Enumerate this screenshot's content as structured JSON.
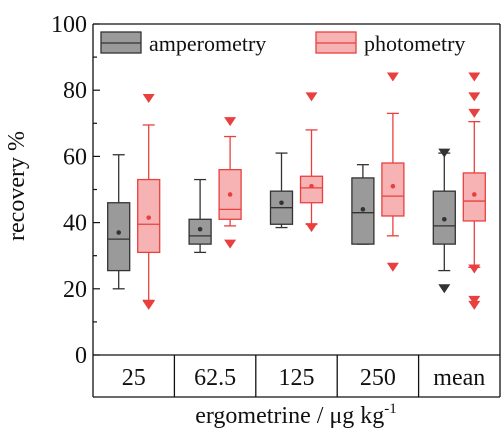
{
  "chart_data": {
    "type": "box",
    "xlabel": "ergometrine / μg kg",
    "xlabel_sup": "-1",
    "ylabel": "recovery %",
    "ylim": [
      0,
      100
    ],
    "yticks": [
      0,
      20,
      40,
      60,
      80,
      100
    ],
    "categories": [
      "25",
      "62.5",
      "125",
      "250",
      "mean"
    ],
    "legend_position": "top",
    "series": [
      {
        "name": "amperometry",
        "color": "#9a9a9a",
        "stroke": "#333333",
        "marker_color": "#333333",
        "boxes": [
          {
            "whisker_low": 20,
            "q1": 25.5,
            "median": 35,
            "q3": 46,
            "whisker_high": 60.5,
            "mean": 37,
            "outliers": []
          },
          {
            "whisker_low": 31,
            "q1": 33.5,
            "median": 36,
            "q3": 41,
            "whisker_high": 53,
            "mean": 38,
            "outliers": []
          },
          {
            "whisker_low": 38.5,
            "q1": 39.5,
            "median": 44.5,
            "q3": 49.5,
            "whisker_high": 61,
            "mean": 46,
            "outliers": []
          },
          {
            "whisker_low": 33.5,
            "q1": 33.5,
            "median": 43,
            "q3": 53.5,
            "whisker_high": 57.5,
            "mean": 44,
            "outliers": []
          },
          {
            "whisker_low": 25.5,
            "q1": 33.5,
            "median": 39,
            "q3": 49.5,
            "whisker_high": 61,
            "mean": 41,
            "outliers": [
              20,
              61
            ]
          }
        ]
      },
      {
        "name": "photometry",
        "color": "#f7b3b3",
        "stroke": "#e8403f",
        "marker_color": "#e8403f",
        "boxes": [
          {
            "whisker_low": 16.5,
            "q1": 31,
            "median": 39.5,
            "q3": 53,
            "whisker_high": 69.5,
            "mean": 41.5,
            "outliers": [
              15,
              77.5
            ]
          },
          {
            "whisker_low": 39,
            "q1": 41,
            "median": 44,
            "q3": 56,
            "whisker_high": 66,
            "mean": 48.5,
            "outliers": [
              33.5,
              70.5
            ]
          },
          {
            "whisker_low": 39.5,
            "q1": 46,
            "median": 50.5,
            "q3": 54,
            "whisker_high": 68,
            "mean": 51,
            "outliers": [
              38.5,
              78
            ]
          },
          {
            "whisker_low": 36,
            "q1": 42,
            "median": 48,
            "q3": 58,
            "whisker_high": 73,
            "mean": 51,
            "outliers": [
              26.5,
              84
            ]
          },
          {
            "whisker_low": 26.5,
            "q1": 40.5,
            "median": 46.5,
            "q3": 55,
            "whisker_high": 70.5,
            "mean": 48.5,
            "outliers": [
              15,
              16.5,
              26,
              73,
              78,
              84
            ]
          }
        ]
      }
    ]
  }
}
